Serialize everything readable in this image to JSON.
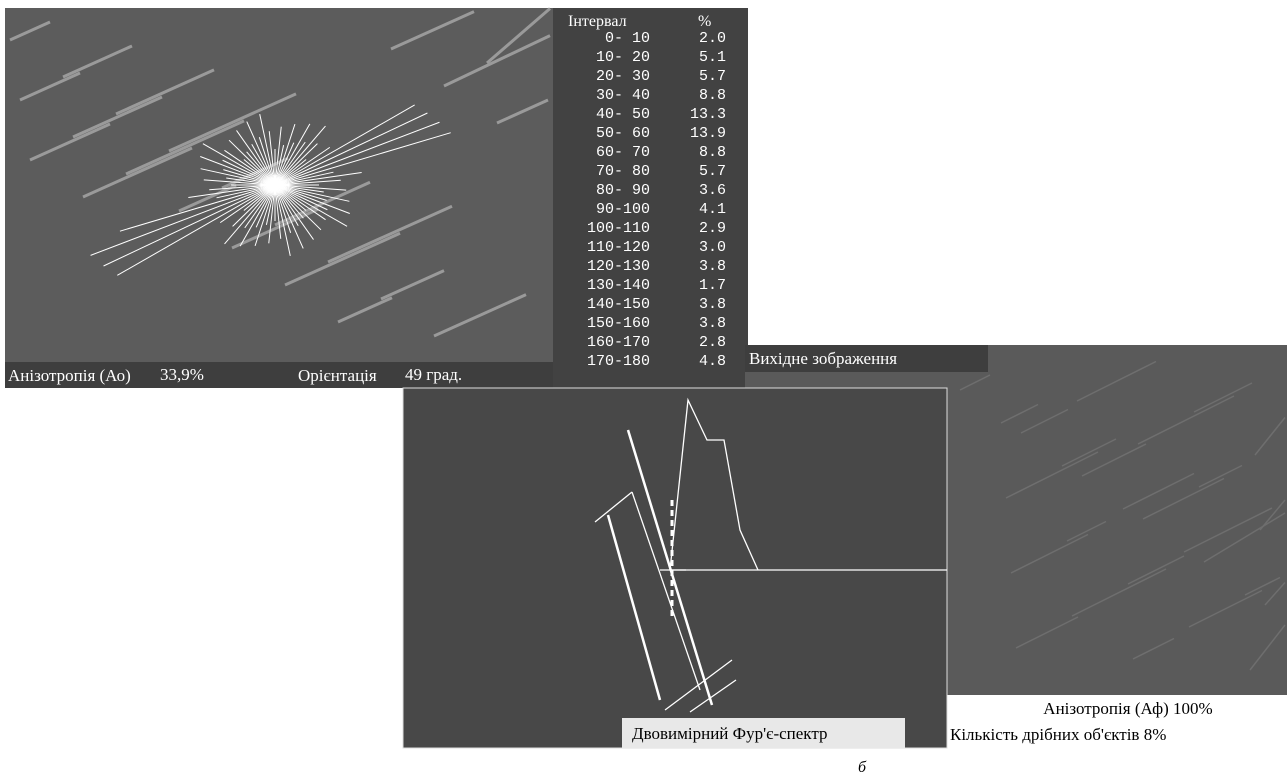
{
  "top_panel": {
    "anisotropy_label": "Анізотропія (Ао)",
    "anisotropy_value": "33,9%",
    "orientation_label": "Орієнтація",
    "orientation_value": "49 град."
  },
  "table": {
    "header": [
      "Інтервал",
      "%"
    ],
    "rows": [
      [
        "0- 10",
        "2.0"
      ],
      [
        "10- 20",
        "5.1"
      ],
      [
        "20- 30",
        "5.7"
      ],
      [
        "30- 40",
        "8.8"
      ],
      [
        "40- 50",
        "13.3"
      ],
      [
        "50- 60",
        "13.9"
      ],
      [
        "60- 70",
        "8.8"
      ],
      [
        "70- 80",
        "5.7"
      ],
      [
        "80- 90",
        "3.6"
      ],
      [
        "90-100",
        "4.1"
      ],
      [
        "100-110",
        "2.9"
      ],
      [
        "110-120",
        "3.0"
      ],
      [
        "120-130",
        "3.8"
      ],
      [
        "130-140",
        "1.7"
      ],
      [
        "140-150",
        "3.8"
      ],
      [
        "150-160",
        "3.8"
      ],
      [
        "160-170",
        "2.8"
      ],
      [
        "170-180",
        "4.8"
      ]
    ]
  },
  "right_panel": {
    "title": "Вихідне зображення",
    "anisotropy": "Анізотропія (Аф) 100%",
    "small_objects": "Кількість дрібних об'єктів 8%"
  },
  "middle_panel": {
    "caption": "Двовимірний Фур'є-спектр"
  },
  "figure_label": "б"
}
